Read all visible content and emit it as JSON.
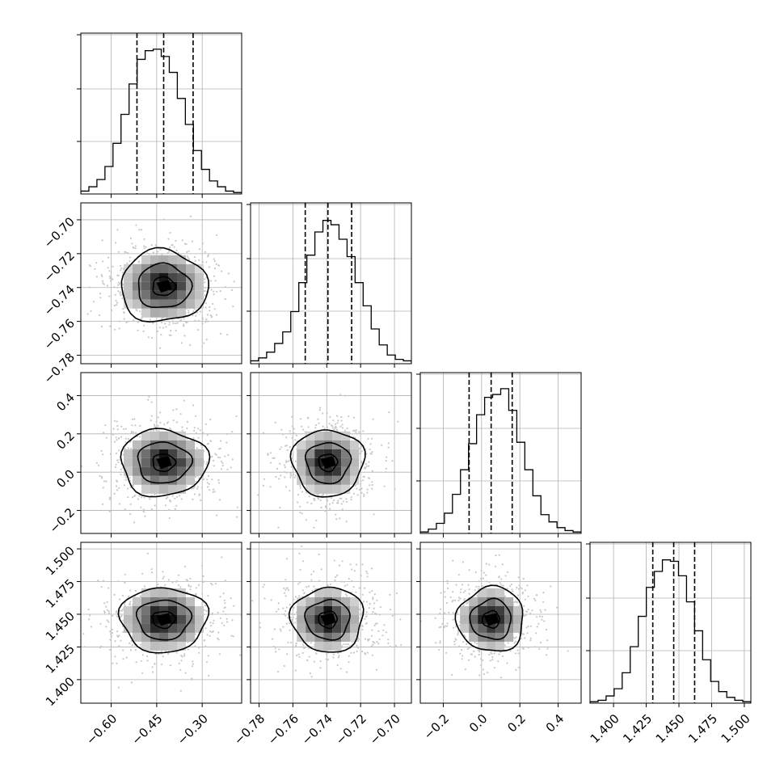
{
  "chart_data": {
    "type": "corner",
    "grid": true,
    "n_params": 4,
    "params": [
      {
        "range": [
          -0.7,
          -0.17
        ],
        "quantiles": [
          -0.515,
          -0.427,
          -0.33
        ],
        "ticks": [
          {
            "v": -0.6,
            "label": "−0.60"
          },
          {
            "v": -0.45,
            "label": "−0.45"
          },
          {
            "v": -0.3,
            "label": "−0.30"
          }
        ],
        "hist": [
          0.02,
          0.05,
          0.1,
          0.19,
          0.35,
          0.55,
          0.76,
          0.93,
          0.99,
          1.0,
          0.95,
          0.84,
          0.66,
          0.48,
          0.3,
          0.17,
          0.09,
          0.05,
          0.02,
          0.01
        ]
      },
      {
        "range": [
          -0.785,
          -0.69
        ],
        "quantiles": [
          -0.7527,
          -0.7393,
          -0.7253
        ],
        "ticks": [
          {
            "v": -0.78,
            "label": "−0.78"
          },
          {
            "v": -0.76,
            "label": "−0.76"
          },
          {
            "v": -0.74,
            "label": "−0.74"
          },
          {
            "v": -0.72,
            "label": "−0.72"
          },
          {
            "v": -0.7,
            "label": "−0.70"
          }
        ],
        "hist": [
          0.02,
          0.04,
          0.08,
          0.14,
          0.22,
          0.36,
          0.56,
          0.75,
          0.91,
          0.99,
          0.96,
          0.86,
          0.74,
          0.56,
          0.4,
          0.24,
          0.13,
          0.06,
          0.03,
          0.02
        ]
      },
      {
        "range": [
          -0.32,
          0.52
        ],
        "quantiles": [
          -0.065,
          0.05,
          0.16
        ],
        "ticks": [
          {
            "v": -0.2,
            "label": "−0.2"
          },
          {
            "v": 0.0,
            "label": "0.0"
          },
          {
            "v": 0.2,
            "label": "0.2"
          },
          {
            "v": 0.4,
            "label": "0.4"
          }
        ],
        "hist": [
          0.01,
          0.03,
          0.07,
          0.14,
          0.27,
          0.44,
          0.62,
          0.82,
          0.94,
          0.96,
          1.0,
          0.85,
          0.63,
          0.44,
          0.26,
          0.13,
          0.08,
          0.04,
          0.02,
          0.01
        ]
      },
      {
        "range": [
          1.382,
          1.505
        ],
        "quantiles": [
          1.43,
          1.446,
          1.462
        ],
        "ticks": [
          {
            "v": 1.4,
            "label": "1.400"
          },
          {
            "v": 1.425,
            "label": "1.425"
          },
          {
            "v": 1.45,
            "label": "1.450"
          },
          {
            "v": 1.475,
            "label": "1.475"
          },
          {
            "v": 1.5,
            "label": "1.500"
          }
        ],
        "hist": [
          0.01,
          0.02,
          0.05,
          0.1,
          0.21,
          0.39,
          0.6,
          0.8,
          0.91,
          0.99,
          0.98,
          0.88,
          0.7,
          0.5,
          0.3,
          0.15,
          0.08,
          0.04,
          0.02,
          0.01
        ]
      }
    ]
  }
}
